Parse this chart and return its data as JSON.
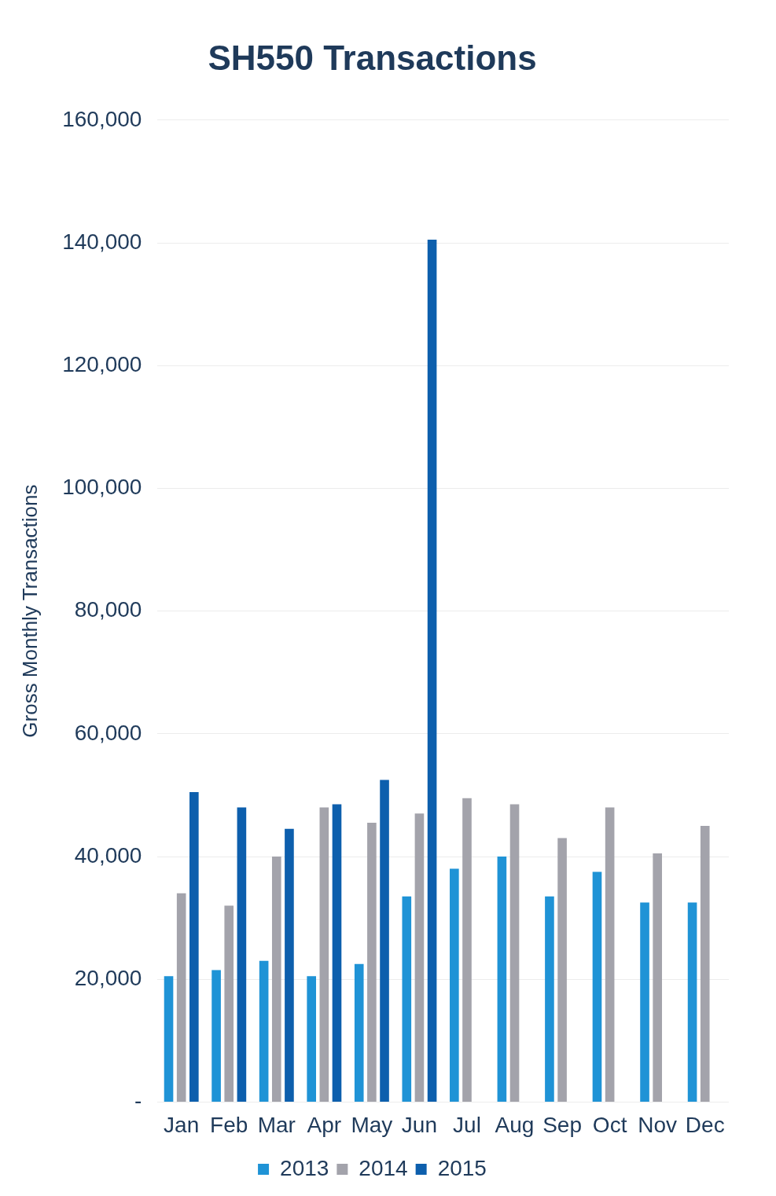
{
  "chart_data": {
    "type": "bar",
    "title": "SH550 Transactions",
    "ylabel": "Gross Monthly Transactions",
    "categories": [
      "Jan",
      "Feb",
      "Mar",
      "Apr",
      "May",
      "Jun",
      "Jul",
      "Aug",
      "Sep",
      "Oct",
      "Nov",
      "Dec"
    ],
    "series": [
      {
        "name": "2013",
        "color": "#1f93d6",
        "values": [
          20500,
          21500,
          23000,
          20500,
          22500,
          33500,
          38000,
          40000,
          33500,
          37500,
          32500,
          32500
        ]
      },
      {
        "name": "2014",
        "color": "#a3a3ab",
        "values": [
          34000,
          32000,
          40000,
          48000,
          45500,
          47000,
          49500,
          48500,
          43000,
          48000,
          40500,
          45000
        ]
      },
      {
        "name": "2015",
        "color": "#0d5fad",
        "values": [
          50500,
          48000,
          44500,
          48500,
          52500,
          140500,
          null,
          null,
          null,
          null,
          null,
          null
        ]
      }
    ],
    "ylim": [
      0,
      160000
    ],
    "yticks": [
      {
        "value": 0,
        "label": "-"
      },
      {
        "value": 20000,
        "label": "20,000"
      },
      {
        "value": 40000,
        "label": "40,000"
      },
      {
        "value": 60000,
        "label": "60,000"
      },
      {
        "value": 80000,
        "label": "80,000"
      },
      {
        "value": 100000,
        "label": "100,000"
      },
      {
        "value": 120000,
        "label": "120,000"
      },
      {
        "value": 140000,
        "label": "140,000"
      },
      {
        "value": 160000,
        "label": "160,000"
      }
    ],
    "grid": "y",
    "legend": "bottom"
  }
}
